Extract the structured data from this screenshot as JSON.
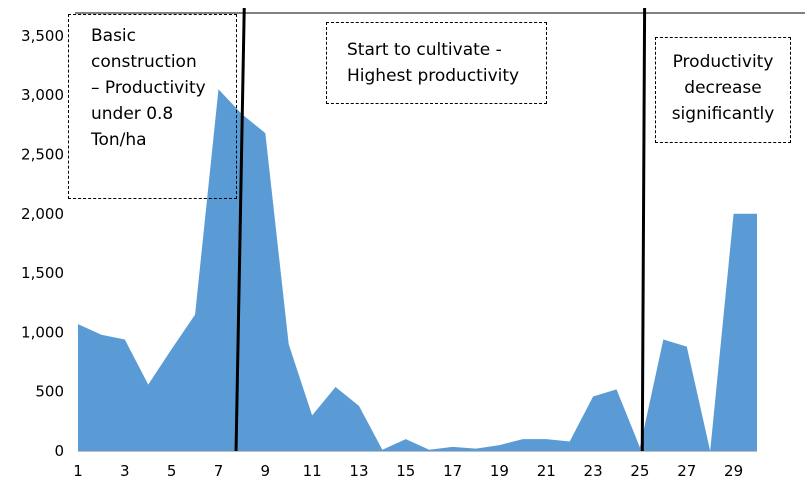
{
  "chart_data": {
    "type": "area",
    "title": "",
    "xlabel": "",
    "ylabel": "",
    "x": [
      1,
      2,
      3,
      4,
      5,
      6,
      7,
      8,
      9,
      10,
      11,
      12,
      13,
      14,
      15,
      16,
      17,
      18,
      19,
      20,
      21,
      22,
      23,
      24,
      25,
      26,
      27,
      28,
      29,
      30
    ],
    "x_tick_labels": [
      "1",
      "3",
      "5",
      "7",
      "9",
      "11",
      "13",
      "15",
      "17",
      "19",
      "21",
      "23",
      "25",
      "27",
      "29"
    ],
    "xlim": [
      1,
      30
    ],
    "ylim": [
      0,
      3600
    ],
    "y_ticks": [
      0,
      500,
      1000,
      1500,
      2000,
      2500,
      3000,
      3500
    ],
    "y_tick_labels": [
      "0",
      "500",
      "1,000",
      "1,500",
      "2,000",
      "2,500",
      "3,000",
      "3,500"
    ],
    "series": [
      {
        "values": [
          1070,
          980,
          940,
          560,
          860,
          1150,
          3050,
          2840,
          2680,
          900,
          300,
          540,
          380,
          10,
          100,
          10,
          35,
          20,
          50,
          100,
          100,
          80,
          460,
          520,
          30,
          940,
          880,
          0,
          2000,
          2000
        ],
        "color": "#5b9bd5"
      }
    ],
    "vertical_lines": [
      {
        "x": 7.75,
        "y_bottom": 0,
        "y_top": 3600,
        "top_x": 8.1,
        "color": "#000000"
      },
      {
        "x": 25.1,
        "y_bottom": 0,
        "y_top": 3600,
        "top_x": 25.2,
        "color": "#000000"
      }
    ],
    "annotations": [
      {
        "lines": [
          "Basic",
          "construction",
          "– Productivity",
          "under 0.8",
          "Ton/ha"
        ]
      },
      {
        "lines": [
          "Start to cultivate -",
          "Highest productivity"
        ]
      },
      {
        "lines": [
          "Productivity",
          "decrease",
          "significantly"
        ]
      }
    ],
    "grid": false,
    "legend": "none"
  }
}
